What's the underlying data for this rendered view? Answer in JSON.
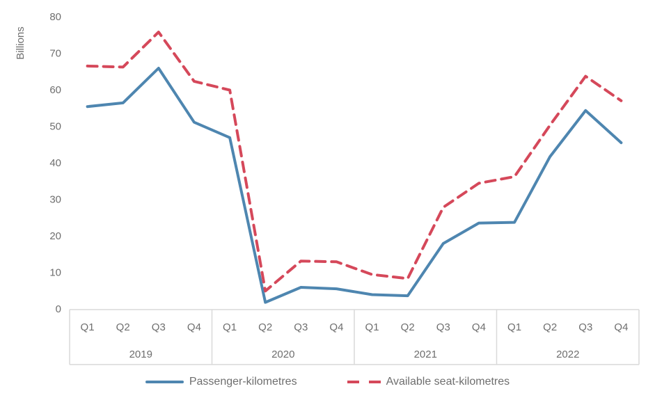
{
  "chart_data": {
    "type": "line",
    "title": "",
    "ylabel": "Billions",
    "xlabel": "",
    "ylim": [
      0,
      80
    ],
    "yticks": [
      0,
      10,
      20,
      30,
      40,
      50,
      60,
      70,
      80
    ],
    "grid": false,
    "legend_position": "bottom",
    "x_groups": [
      {
        "year": "2019",
        "quarters": [
          "Q1",
          "Q2",
          "Q3",
          "Q4"
        ]
      },
      {
        "year": "2020",
        "quarters": [
          "Q1",
          "Q2",
          "Q3",
          "Q4"
        ]
      },
      {
        "year": "2021",
        "quarters": [
          "Q1",
          "Q2",
          "Q3",
          "Q4"
        ]
      },
      {
        "year": "2022",
        "quarters": [
          "Q1",
          "Q2",
          "Q3",
          "Q4"
        ]
      }
    ],
    "series": [
      {
        "name": "Passenger-kilometres",
        "style": "solid",
        "color": "#4E86B0",
        "values": [
          55.4,
          56.4,
          65.9,
          51.1,
          46.9,
          1.8,
          5.9,
          5.5,
          3.9,
          3.6,
          17.9,
          23.5,
          23.7,
          41.7,
          54.3,
          45.5
        ]
      },
      {
        "name": "Available seat-kilometres",
        "style": "dashed",
        "color": "#D5485A",
        "values": [
          66.5,
          66.2,
          75.8,
          62.3,
          59.9,
          4.9,
          13.1,
          12.9,
          9.4,
          8.3,
          27.8,
          34.4,
          36.2,
          50.3,
          63.7,
          57.0
        ]
      }
    ]
  },
  "colors": {
    "axis_line": "#D9D9D9",
    "tick_text": "#6E6E6E"
  }
}
